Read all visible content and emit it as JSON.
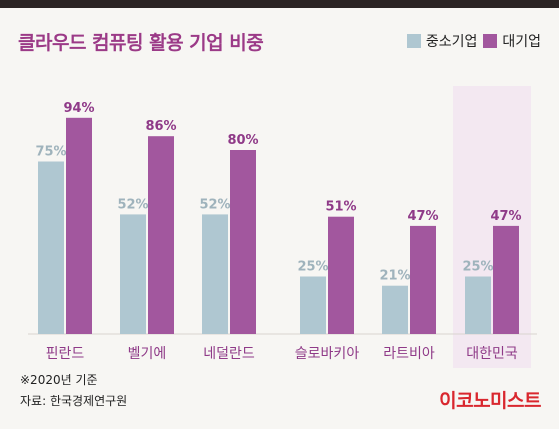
{
  "chart_data": {
    "type": "bar",
    "title": "클라우드 컴퓨팅 활용 기업 비중",
    "categories": [
      "핀란드",
      "벨기에",
      "네덜란드",
      "슬로바키아",
      "라트비아",
      "대한민국"
    ],
    "series": [
      {
        "name": "중소기업",
        "values": [
          75,
          52,
          52,
          25,
          21,
          25
        ],
        "labels": [
          "75%",
          "52%",
          "52%",
          "25%",
          "21%",
          "25%"
        ]
      },
      {
        "name": "대기업",
        "values": [
          94,
          86,
          80,
          51,
          47,
          47
        ],
        "labels": [
          "94%",
          "86%",
          "80%",
          "51%",
          "47%",
          "47%"
        ]
      }
    ],
    "ylim": [
      0,
      100
    ],
    "grid": false,
    "legend": "top-right",
    "highlight_category": "대한민국"
  },
  "colors": {
    "small_business": "#afc7d1",
    "large_business": "#a2579e",
    "small_label": "#9fb3bc",
    "large_label": "#8f3a88",
    "title": "#9b3a87",
    "highlight_bg": "#f3e8f1",
    "brand": "#d9272e"
  },
  "notes": {
    "year": "※2020년 기준",
    "source": "자료: 한국경제연구원"
  },
  "brand": "이코노미스트"
}
